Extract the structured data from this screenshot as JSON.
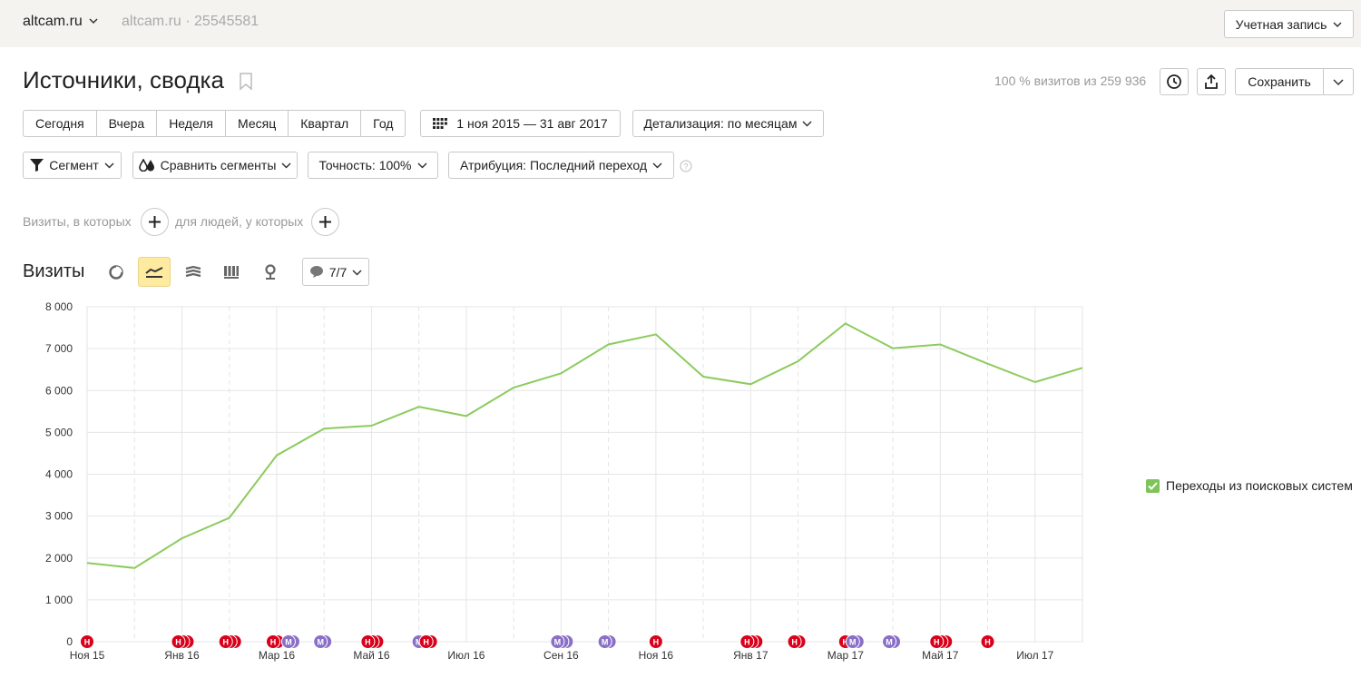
{
  "header": {
    "site_name": "altcam.ru",
    "site_sub": "altcam.ru · 25545581",
    "account_label": "Учетная запись"
  },
  "report": {
    "title": "Источники, сводка",
    "visits_info": "100 % визитов из 259 936",
    "save_label": "Сохранить"
  },
  "periods": [
    "Сегодня",
    "Вчера",
    "Неделя",
    "Месяц",
    "Квартал",
    "Год"
  ],
  "date_range": "1 ноя 2015 — 31 авг 2017",
  "detail_label": "Детализация: по месяцам",
  "toolbar": {
    "segment_label": "Сегмент",
    "compare_label": "Сравнить сегменты",
    "accuracy_label": "Точность: 100%",
    "attribution_label": "Атрибуция: Последний переход"
  },
  "filters": {
    "visits_text": "Визиты, в которых",
    "people_text": "для людей, у которых"
  },
  "chart_section": {
    "title": "Визиты",
    "notes_count": "7/7"
  },
  "colors": {
    "line": "#8ccb5e",
    "note_red": "#d9001b",
    "note_purple": "#8a6fc7",
    "active_view": "#ffeba0"
  },
  "chart_data": {
    "type": "line",
    "x": [
      "Ноя 15",
      "Дек 15",
      "Янв 16",
      "Фев 16",
      "Мар 16",
      "Апр 16",
      "Май 16",
      "Июн 16",
      "Июл 16",
      "Авг 16",
      "Сен 16",
      "Окт 16",
      "Ноя 16",
      "Дек 16",
      "Янв 17",
      "Фев 17",
      "Мар 17",
      "Апр 17",
      "Май 17",
      "Июн 17",
      "Июл 17",
      "Авг 17"
    ],
    "x_tick_labels": [
      "Ноя 15",
      "Янв 16",
      "Мар 16",
      "Май 16",
      "Июл 16",
      "Сен 16",
      "Ноя 16",
      "Янв 17",
      "Мар 17",
      "Май 17",
      "Июл 17"
    ],
    "y_tick_labels": [
      "0",
      "1 000",
      "2 000",
      "3 000",
      "4 000",
      "5 000",
      "6 000",
      "7 000",
      "8 000"
    ],
    "ylim": [
      0,
      8000
    ],
    "series": [
      {
        "name": "Переходы из поисковых систем",
        "values": [
          1880,
          1760,
          2470,
          2960,
          4450,
          5090,
          5160,
          5610,
          5390,
          6070,
          6410,
          7100,
          7340,
          6330,
          6150,
          6700,
          7600,
          7010,
          7100,
          6640,
          6200,
          6540
        ]
      }
    ],
    "notes": [
      {
        "month": 0,
        "kind": "red",
        "count": 1
      },
      {
        "month": 2,
        "kind": "red",
        "count": 3
      },
      {
        "month": 3,
        "kind": "red",
        "count": 3
      },
      {
        "month": 4,
        "kind": "red",
        "count": 2
      },
      {
        "month": 4,
        "kind": "purple",
        "count": 2
      },
      {
        "month": 5,
        "kind": "purple",
        "count": 2
      },
      {
        "month": 6,
        "kind": "red",
        "count": 3
      },
      {
        "month": 7,
        "kind": "purple",
        "count": 1
      },
      {
        "month": 7,
        "kind": "red",
        "count": 2
      },
      {
        "month": 10,
        "kind": "purple",
        "count": 3
      },
      {
        "month": 11,
        "kind": "purple",
        "count": 2
      },
      {
        "month": 12,
        "kind": "red",
        "count": 1
      },
      {
        "month": 14,
        "kind": "red",
        "count": 3
      },
      {
        "month": 15,
        "kind": "red",
        "count": 2
      },
      {
        "month": 16,
        "kind": "red",
        "count": 1
      },
      {
        "month": 16,
        "kind": "purple",
        "count": 2
      },
      {
        "month": 17,
        "kind": "purple",
        "count": 2
      },
      {
        "month": 18,
        "kind": "red",
        "count": 3
      },
      {
        "month": 19,
        "kind": "red",
        "count": 1
      }
    ],
    "note_letters": {
      "red": "Н",
      "purple": "М"
    },
    "grid": true,
    "legend_position": "right"
  }
}
